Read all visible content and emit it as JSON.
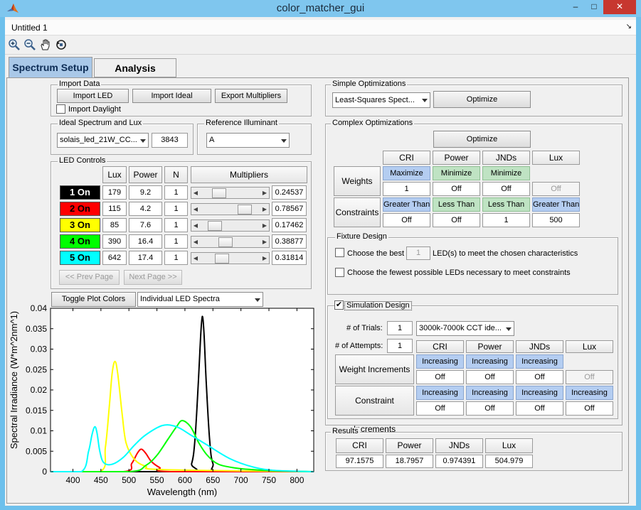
{
  "window": {
    "title": "color_matcher_gui",
    "minimize": "–",
    "maximize": "□",
    "close": "✕"
  },
  "menubar": {
    "title": "Untitled 1",
    "arrow": "↘"
  },
  "toolbar": {
    "icons": [
      "zoom-in-icon",
      "zoom-out-icon",
      "pan-hand-icon",
      "rotate-3d-icon"
    ]
  },
  "tabs": {
    "spectrum": "Spectrum Setup",
    "analysis": "Analysis"
  },
  "import_data": {
    "title": "Import Data",
    "import_led": "Import LED",
    "import_ideal": "Import Ideal",
    "export_multipliers": "Export Multipliers",
    "import_daylight": "Import Daylight"
  },
  "ideal": {
    "title": "Ideal Spectrum and Lux",
    "spectrum": "solais_led_21W_CC...",
    "lux": "3843"
  },
  "reference": {
    "title": "Reference Illuminant",
    "value": "A"
  },
  "led_controls": {
    "title": "LED Controls",
    "headers": {
      "lux": "Lux",
      "power": "Power",
      "n": "N",
      "multipliers": "Multipliers"
    },
    "rows": [
      {
        "label": "1 On",
        "bg": "#000000",
        "fg": "#ffffff",
        "lux": "179",
        "power": "9.2",
        "n": "1",
        "mult": "0.24537",
        "level": 0.25
      },
      {
        "label": "2 On",
        "bg": "#ff0000",
        "fg": "#000000",
        "lux": "115",
        "power": "4.2",
        "n": "1",
        "mult": "0.78567",
        "level": 0.79
      },
      {
        "label": "3 On",
        "bg": "#ffff00",
        "fg": "#000000",
        "lux": "85",
        "power": "7.6",
        "n": "1",
        "mult": "0.17462",
        "level": 0.17
      },
      {
        "label": "4 On",
        "bg": "#00ff00",
        "fg": "#000000",
        "lux": "390",
        "power": "16.4",
        "n": "1",
        "mult": "0.38877",
        "level": 0.39
      },
      {
        "label": "5 On",
        "bg": "#00ffff",
        "fg": "#000000",
        "lux": "642",
        "power": "17.4",
        "n": "1",
        "mult": "0.31814",
        "level": 0.32
      }
    ],
    "prev": "<< Prev Page",
    "next": "Next Page >>"
  },
  "plot_controls": {
    "toggle": "Toggle Plot Colors",
    "mode": "Individual LED Spectra"
  },
  "simple_opt": {
    "title": "Simple Optimizations",
    "method": "Least-Squares Spect...",
    "optimize": "Optimize"
  },
  "complex_opt": {
    "title": "Complex Optimizations",
    "optimize": "Optimize",
    "headers": [
      "CRI",
      "Power",
      "JNDs",
      "Lux"
    ],
    "weights_label": "Weights",
    "weights": [
      "Maximize",
      "Minimize",
      "Minimize"
    ],
    "weight_values": [
      "1",
      "Off",
      "Off",
      "Off"
    ],
    "constraints_label": "Constraints",
    "constraints": [
      "Greater Than",
      "Less Than",
      "Less Than",
      "Greater Than"
    ],
    "constraint_values": [
      "Off",
      "Off",
      "1",
      "500"
    ]
  },
  "fixture": {
    "title": "Fixture Design",
    "choose_best_pre": "Choose the best",
    "best_count": "1",
    "choose_best_post": "LED(s) to meet the chosen characteristics",
    "choose_fewest": "Choose the fewest possible LEDs necessary to meet constraints"
  },
  "simulation": {
    "title": "Simulation Design",
    "checked": "✔",
    "trials_label": "# of Trials:",
    "trials": "1",
    "preset": "3000k-7000k CCT ide...",
    "attempts_label": "# of Attempts:",
    "attempts": "1",
    "headers": [
      "CRI",
      "Power",
      "JNDs",
      "Lux"
    ],
    "weight_inc_label": "Weight Increments",
    "weight_inc": [
      "Increasing",
      "Increasing",
      "Increasing"
    ],
    "weight_inc_values": [
      "Off",
      "Off",
      "Off",
      "Off"
    ],
    "constraint_inc_label": "Constraint Increments",
    "constraint_inc": [
      "Increasing",
      "Increasing",
      "Increasing",
      "Increasing"
    ],
    "constraint_inc_values": [
      "Off",
      "Off",
      "Off",
      "Off"
    ]
  },
  "results": {
    "title": "Results",
    "headers": [
      "CRI",
      "Power",
      "JNDs",
      "Lux"
    ],
    "values": [
      "97.1575",
      "18.7957",
      "0.974391",
      "504.979"
    ]
  },
  "chart_data": {
    "type": "line",
    "xlabel": "Wavelength (nm)",
    "ylabel": "Spectral Irradiance (W*m^2nm^1)",
    "xlim": [
      360,
      830
    ],
    "ylim": [
      0,
      0.04
    ],
    "xticks": [
      "400",
      "450",
      "500",
      "550",
      "600",
      "650",
      "700",
      "750",
      "800"
    ],
    "yticks": [
      "0",
      "0.005",
      "0.01",
      "0.015",
      "0.02",
      "0.025",
      "0.03",
      "0.035",
      "0.04"
    ],
    "series": [
      {
        "color": "#000000",
        "x": [
          360,
          600,
          612,
          618,
          624,
          628,
          631,
          634,
          638,
          644,
          650,
          665,
          830
        ],
        "y": [
          0,
          0,
          0.002,
          0.008,
          0.022,
          0.033,
          0.038,
          0.034,
          0.022,
          0.008,
          0.002,
          0,
          0
        ]
      },
      {
        "color": "#ff0000",
        "x": [
          360,
          490,
          505,
          515,
          522,
          530,
          540,
          555,
          575,
          830
        ],
        "y": [
          0,
          0,
          0.002,
          0.0045,
          0.0055,
          0.0045,
          0.0025,
          0.001,
          0,
          0
        ]
      },
      {
        "color": "#ffff00",
        "x": [
          360,
          448,
          458,
          465,
          470,
          475,
          480,
          488,
          495,
          510,
          530,
          560,
          830
        ],
        "y": [
          0,
          0,
          0.006,
          0.016,
          0.024,
          0.027,
          0.024,
          0.014,
          0.007,
          0.003,
          0.0013,
          0.0005,
          0
        ]
      },
      {
        "color": "#00ff00",
        "x": [
          360,
          500,
          530,
          550,
          570,
          585,
          595,
          610,
          625,
          640,
          660,
          690,
          720,
          760,
          830
        ],
        "y": [
          0,
          0,
          0.0015,
          0.004,
          0.008,
          0.011,
          0.0125,
          0.011,
          0.007,
          0.004,
          0.0018,
          0.0009,
          0.0005,
          0.0002,
          0
        ]
      },
      {
        "color": "#00ffff",
        "x": [
          360,
          415,
          428,
          434,
          439,
          443,
          448,
          455,
          470,
          490,
          510,
          530,
          560,
          585,
          610,
          640,
          680,
          720,
          760,
          830
        ],
        "y": [
          0,
          0,
          0.005,
          0.009,
          0.011,
          0.0095,
          0.005,
          0.0022,
          0.0018,
          0.0035,
          0.0065,
          0.009,
          0.0113,
          0.011,
          0.009,
          0.0065,
          0.0032,
          0.0012,
          0.0003,
          0
        ]
      }
    ]
  }
}
